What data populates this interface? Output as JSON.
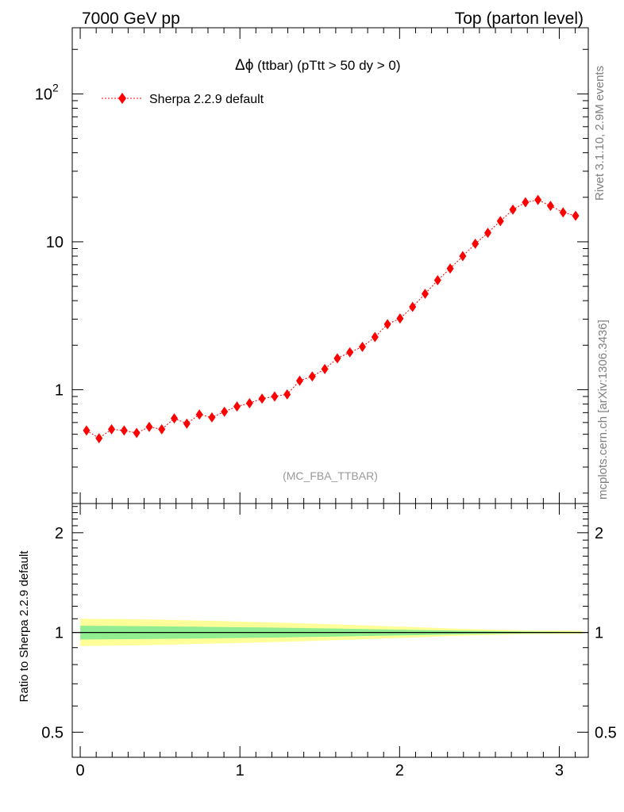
{
  "header": {
    "left": "7000 GeV pp",
    "right": "Top (parton level)"
  },
  "side_labels": {
    "rivet": "Rivet 3.1.10,  2.9M events",
    "mcplots": "mcplots.cern.ch [arXiv:1306.3436]"
  },
  "analysis_tag": "(MC_FBA_TTBAR)",
  "colors": {
    "series": "#ff0000",
    "band_inner": "#90ee90",
    "band_outer": "#ffff99"
  },
  "chart_data": [
    {
      "type": "line",
      "title": "Δϕ (ttbar) (pTtt > 50 dy > 0)",
      "title_symbol": "Δϕ",
      "title_rest": " (ttbar) (pTtt > 50 dy > 0)",
      "yscale": "log",
      "xlim": [
        -0.05,
        3.1816
      ],
      "ylim": [
        0.17,
        280
      ],
      "y_tick_labels": [
        {
          "value": 1,
          "label": "1"
        },
        {
          "value": 10,
          "label": "10"
        },
        {
          "value": 100,
          "base": "10",
          "exp": "2"
        }
      ],
      "legend_position": "top-left",
      "series": [
        {
          "name": "Sherpa 2.2.9 default",
          "x": [
            0.0393,
            0.1178,
            0.1963,
            0.2749,
            0.3534,
            0.432,
            0.5105,
            0.589,
            0.6676,
            0.7461,
            0.8247,
            0.9032,
            0.9817,
            1.0603,
            1.1388,
            1.2174,
            1.2959,
            1.3744,
            1.453,
            1.5315,
            1.6101,
            1.6886,
            1.7671,
            1.8457,
            1.9242,
            2.0028,
            2.0813,
            2.1598,
            2.2384,
            2.3169,
            2.3955,
            2.474,
            2.5525,
            2.6311,
            2.7096,
            2.7882,
            2.8667,
            2.9452,
            3.0238,
            3.1023
          ],
          "y": [
            0.53,
            0.47,
            0.54,
            0.53,
            0.51,
            0.56,
            0.54,
            0.64,
            0.59,
            0.68,
            0.65,
            0.71,
            0.77,
            0.81,
            0.87,
            0.9,
            0.93,
            1.15,
            1.23,
            1.38,
            1.63,
            1.79,
            1.95,
            2.27,
            2.77,
            3.03,
            3.63,
            4.45,
            5.5,
            6.6,
            8.0,
            9.7,
            11.5,
            13.8,
            16.5,
            18.5,
            19.2,
            17.5,
            15.8,
            15.0
          ]
        }
      ]
    },
    {
      "type": "area",
      "ylabel": "Ratio to Sherpa 2.2.9 default",
      "ylim": [
        0.42,
        2.45
      ],
      "xlim": [
        -0.05,
        3.1816
      ],
      "y_ticks": [
        0.5,
        1,
        2
      ],
      "y_tick_labels": [
        "0.5",
        "1",
        "2"
      ],
      "x_ticks": [
        0,
        1,
        2,
        3
      ],
      "x_tick_labels": [
        "0",
        "1",
        "2",
        "3"
      ],
      "reference_line": 1,
      "band_x": [
        0.0,
        0.4,
        0.8,
        1.2,
        1.6,
        2.0,
        2.4,
        2.8,
        3.1416
      ],
      "inner_band": {
        "low": [
          0.952,
          0.955,
          0.96,
          0.965,
          0.972,
          0.98,
          0.988,
          0.994,
          0.996
        ],
        "high": [
          1.048,
          1.045,
          1.04,
          1.035,
          1.028,
          1.02,
          1.012,
          1.006,
          1.004
        ]
      },
      "outer_band": {
        "low": [
          0.91,
          0.915,
          0.925,
          0.935,
          0.948,
          0.962,
          0.978,
          0.988,
          0.99
        ],
        "high": [
          1.1,
          1.095,
          1.085,
          1.072,
          1.058,
          1.042,
          1.025,
          1.014,
          1.012
        ]
      }
    }
  ]
}
